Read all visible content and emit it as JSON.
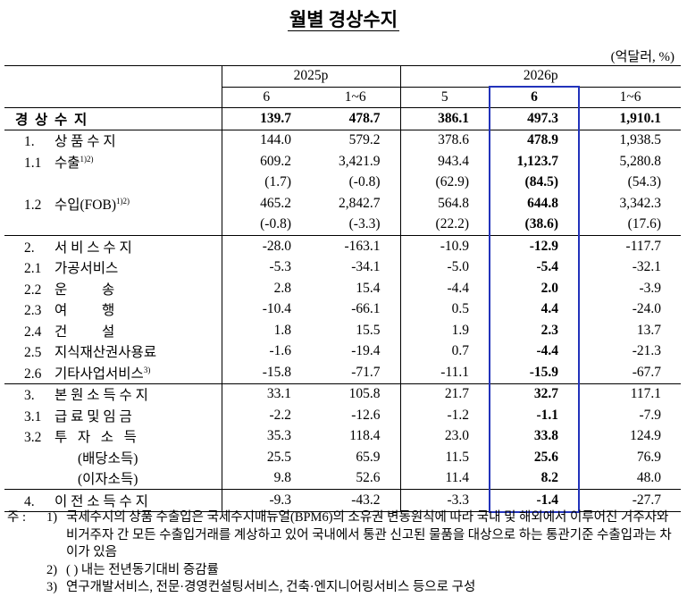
{
  "title": "월별 경상수지",
  "unit": "(억달러, %)",
  "header": {
    "groups": [
      {
        "label": "2025p",
        "columns": [
          "6",
          "1~6"
        ]
      },
      {
        "label": "2026p",
        "columns": [
          "5",
          "6",
          "1~6"
        ]
      }
    ]
  },
  "table": {
    "rows": [
      {
        "label": "경  상  수  지",
        "values": [
          "139.7",
          "478.7",
          "386.1",
          "497.3",
          "1,910.1"
        ]
      },
      {
        "num": "1.",
        "label": "상 품 수 지",
        "values": [
          "144.0",
          "579.2",
          "378.6",
          "478.9",
          "1,938.5"
        ]
      },
      {
        "num": "1.1",
        "label": "수출",
        "sup": "1)2)",
        "values": [
          "609.2",
          "3,421.9",
          "943.4",
          "1,123.7",
          "5,280.8"
        ]
      },
      {
        "values": [
          "(1.7)",
          "(-0.8)",
          "(62.9)",
          "(84.5)",
          "(54.3)"
        ]
      },
      {
        "num": "1.2",
        "label": "수입(FOB)",
        "sup": "1)2)",
        "values": [
          "465.2",
          "2,842.7",
          "564.8",
          "644.8",
          "3,342.3"
        ]
      },
      {
        "values": [
          "(-0.8)",
          "(-3.3)",
          "(22.2)",
          "(38.6)",
          "(17.6)"
        ]
      },
      {
        "num": "2.",
        "label": "서 비 스 수 지",
        "values": [
          "-28.0",
          "-163.1",
          "-10.9",
          "-12.9",
          "-117.7"
        ]
      },
      {
        "num": "2.1",
        "label": "가공서비스",
        "values": [
          "-5.3",
          "-34.1",
          "-5.0",
          "-5.4",
          "-32.1"
        ]
      },
      {
        "num": "2.2",
        "label": "운          송",
        "values": [
          "2.8",
          "15.4",
          "-4.4",
          "2.0",
          "-3.9"
        ]
      },
      {
        "num": "2.3",
        "label": "여          행",
        "values": [
          "-10.4",
          "-66.1",
          "0.5",
          "4.4",
          "-24.0"
        ]
      },
      {
        "num": "2.4",
        "label": "건          설",
        "values": [
          "1.8",
          "15.5",
          "1.9",
          "2.3",
          "13.7"
        ]
      },
      {
        "num": "2.5",
        "label": "지식재산권사용료",
        "values": [
          "-1.6",
          "-19.4",
          "0.7",
          "-4.4",
          "-21.3"
        ]
      },
      {
        "num": "2.6",
        "label": "기타사업서비스",
        "sup": "3)",
        "values": [
          "-15.8",
          "-71.7",
          "-11.1",
          "-15.9",
          "-67.7"
        ]
      },
      {
        "num": "3.",
        "label": "본 원 소 득 수 지",
        "values": [
          "33.1",
          "105.8",
          "21.7",
          "32.7",
          "117.1"
        ]
      },
      {
        "num": "3.1",
        "label": "급 료 및 임 금",
        "values": [
          "-2.2",
          "-12.6",
          "-1.2",
          "-1.1",
          "-7.9"
        ]
      },
      {
        "num": "3.2",
        "label": "투   자   소   득",
        "values": [
          "35.3",
          "118.4",
          "23.0",
          "33.8",
          "124.9"
        ]
      },
      {
        "label": "(배당소득)",
        "values": [
          "25.5",
          "65.9",
          "11.5",
          "25.6",
          "76.9"
        ]
      },
      {
        "label": "(이자소득)",
        "values": [
          "9.8",
          "52.6",
          "11.4",
          "8.2",
          "48.0"
        ]
      },
      {
        "num": "4.",
        "label": "이 전 소 득 수 지",
        "values": [
          "-9.3",
          "-43.2",
          "-3.3",
          "-1.4",
          "-27.7"
        ]
      }
    ]
  },
  "notes": {
    "label": "주 :",
    "items": [
      {
        "marker": "1)",
        "text": "국제수지의 상품 수출입은 국제수지매뉴얼(BPM6)의 소유권 변동원칙에 따라 국내 및 해외에서 이루어진 거주자와 비거주자 간 모든 수출입거래를 계상하고 있어 국내에서 통관 신고된 물품을 대상으로 하는 통관기준 수출입과는 차이가 있음"
      },
      {
        "marker": "2)",
        "text": "( ) 내는 전년동기대비 증감률"
      },
      {
        "marker": "3)",
        "text": "연구개발서비스, 전문·경영컨설팅서비스, 건축·엔지니어링서비스 등으로 구성"
      }
    ]
  }
}
